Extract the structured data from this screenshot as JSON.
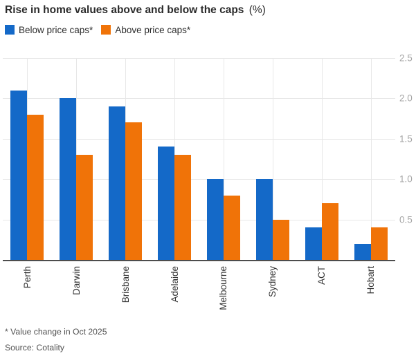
{
  "header": {
    "title": "Rise in home values above and below the caps",
    "title_unit": "(%)"
  },
  "legend": {
    "items": [
      {
        "label": "Below price caps*",
        "color": "#1469C8"
      },
      {
        "label": "Above price caps*",
        "color": "#F07308"
      }
    ]
  },
  "chart_data": {
    "type": "bar",
    "title": "Rise in home values above and below the caps (%)",
    "categories": [
      "Perth",
      "Darwin",
      "Brisbane",
      "Adelaide",
      "Melbourne",
      "Sydney",
      "ACT",
      "Hobart"
    ],
    "series": [
      {
        "name": "Below price caps*",
        "color": "#1469C8",
        "values": [
          2.1,
          2.0,
          1.9,
          1.4,
          1.0,
          1.0,
          0.4,
          0.2
        ]
      },
      {
        "name": "Above price caps*",
        "color": "#F07308",
        "values": [
          1.8,
          1.3,
          1.7,
          1.3,
          0.8,
          0.5,
          0.7,
          0.4
        ]
      }
    ],
    "xlabel": "",
    "ylabel": "",
    "ylim": [
      0,
      2.5
    ],
    "y_ticks": [
      0.5,
      1.0,
      1.5,
      2.0,
      2.5
    ],
    "y_tick_labels": [
      "0.5",
      "1.0",
      "1.5",
      "2.0",
      "2.5"
    ],
    "y_axis_side": "right",
    "grid": true,
    "legend_position": "top-left",
    "x_label_rotation": -90
  },
  "footer": {
    "note": "* Value change in Oct 2025",
    "source": "Source: Cotality"
  },
  "colors": {
    "blue": "#1469C8",
    "orange": "#F07308",
    "gridline": "#E7E7E7",
    "axis_line": "#4D4D4D",
    "y_tick_text": "#A6A6A6",
    "x_tick_text": "#333333",
    "title_text": "#2B2B2B",
    "footnote_text": "#4F4F4F"
  }
}
